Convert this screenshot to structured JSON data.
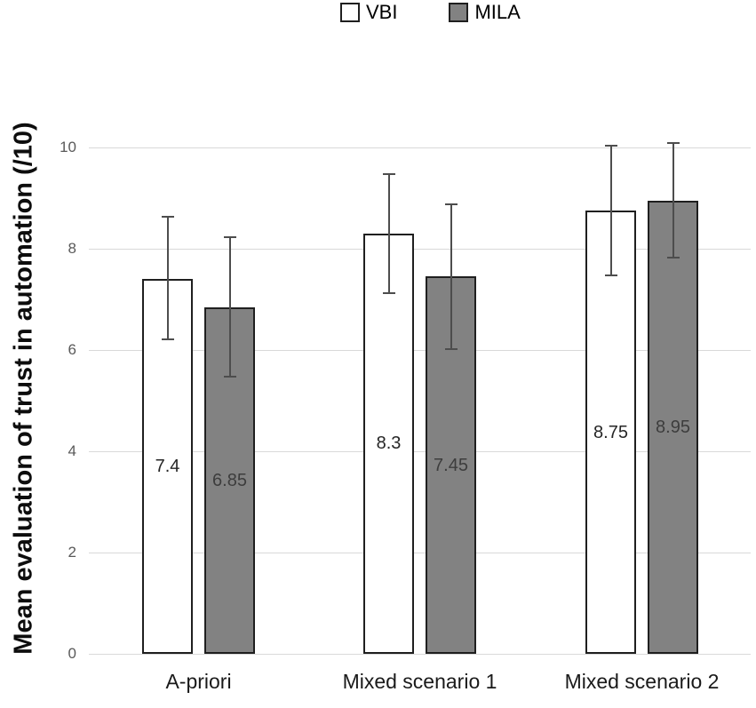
{
  "chart_data": {
    "type": "bar",
    "title": "",
    "ylabel": "Mean evaluation of trust in automation (/10)",
    "xlabel": "",
    "categories": [
      "A-priori",
      "Mixed scenario 1",
      "Mixed scenario 2"
    ],
    "series": [
      {
        "name": "VBI",
        "fill": "#ffffff",
        "values": [
          7.4,
          8.3,
          8.75
        ],
        "value_labels": [
          "7.4",
          "8.3",
          "8.75"
        ],
        "error_low": [
          6.2,
          7.1,
          7.45
        ],
        "error_high": [
          8.65,
          9.5,
          10.05
        ]
      },
      {
        "name": "MILA",
        "fill": "#828282",
        "values": [
          6.85,
          7.45,
          8.95
        ],
        "value_labels": [
          "6.85",
          "7.45",
          "8.95"
        ],
        "error_low": [
          5.45,
          6.0,
          7.8
        ],
        "error_high": [
          8.25,
          8.9,
          10.1
        ]
      }
    ],
    "yticks": [
      0,
      2,
      4,
      6,
      8,
      10
    ],
    "ylim": [
      0,
      10
    ],
    "grid": true,
    "error_bars": true,
    "legend_position": "top"
  },
  "colors": {
    "vbi_fill": "#ffffff",
    "mila_fill": "#828282",
    "bar_outline": "#1f1f1f",
    "error_bar": "#4d4d4d",
    "gridline": "#d9d9d9",
    "tick_label": "#595959",
    "category_label": "#1a1a1a",
    "axis_title": "#0d0d0d"
  }
}
